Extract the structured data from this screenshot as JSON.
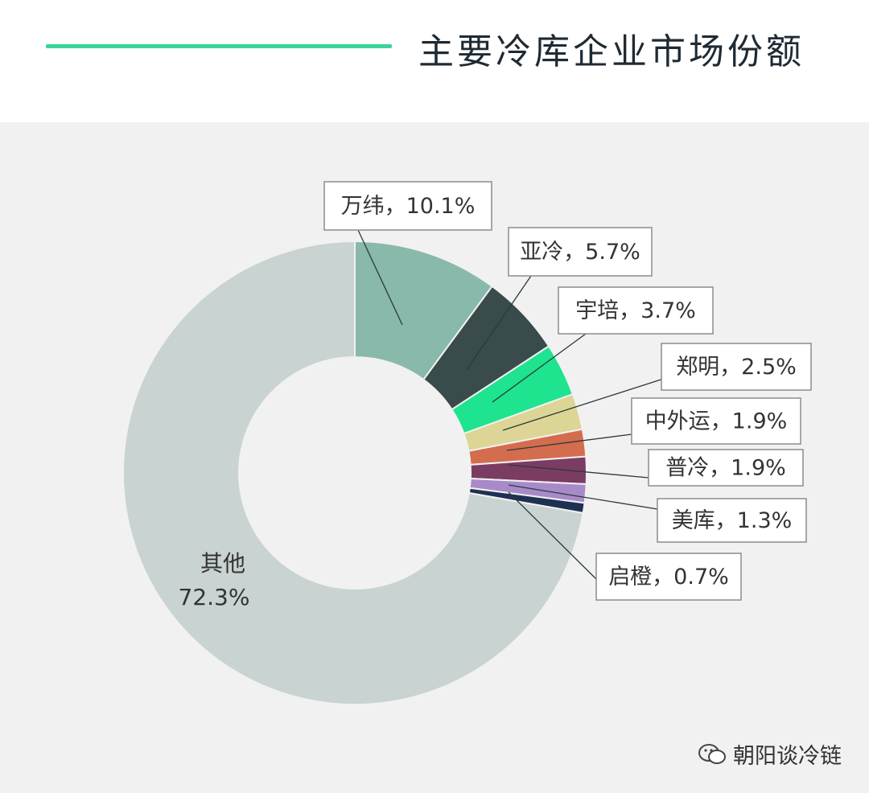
{
  "title": "主要冷库企业市场份额",
  "watermark": "朝阳谈冷链",
  "chart_data": {
    "type": "donut",
    "title": "主要冷库企业市场份额",
    "unit": "%",
    "slices": [
      {
        "name": "万纬",
        "value": 10.1,
        "label": "万纬，10.1%",
        "color": "#88b9aa"
      },
      {
        "name": "亚冷",
        "value": 5.7,
        "label": "亚冷，5.7%",
        "color": "#394b4a"
      },
      {
        "name": "宇培",
        "value": 3.7,
        "label": "宇培，3.7%",
        "color": "#1ee38f"
      },
      {
        "name": "郑明",
        "value": 2.5,
        "label": "郑明，2.5%",
        "color": "#dcd595"
      },
      {
        "name": "中外运",
        "value": 1.9,
        "label": "中外运，1.9%",
        "color": "#d46c4e"
      },
      {
        "name": "普冷",
        "value": 1.9,
        "label": "普冷，1.9%",
        "color": "#7b3c63"
      },
      {
        "name": "美库",
        "value": 1.3,
        "label": "美库，1.3%",
        "color": "#a88ac8"
      },
      {
        "name": "启橙",
        "value": 0.7,
        "label": "启橙，0.7%",
        "color": "#1e3152"
      },
      {
        "name": "其他",
        "value": 72.3,
        "label_line1": "其他",
        "label_line2": "72.3%",
        "color": "#c9d3d1"
      }
    ]
  }
}
